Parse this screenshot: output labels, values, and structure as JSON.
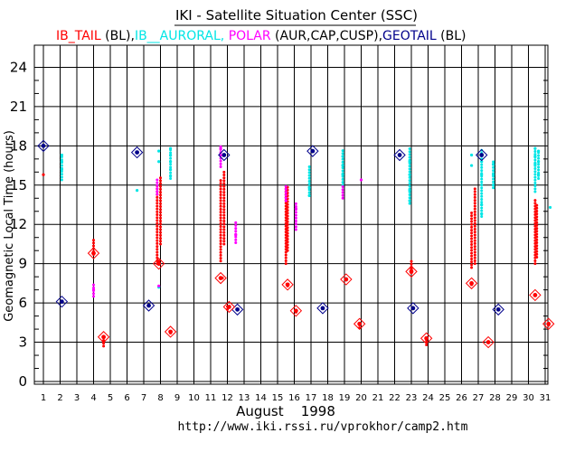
{
  "chart_data": {
    "type": "scatter",
    "title": "IKI - Satellite Situation Center (SSC)",
    "legend": [
      {
        "text": "IB_TAIL",
        "color": "#ff0000"
      },
      {
        "text": " (BL),",
        "color": "#000000"
      },
      {
        "text": "IB__AURORAL,",
        "color": "#00e5e5"
      },
      {
        "text": " POLAR",
        "color": "#ff00ff"
      },
      {
        "text": " (AUR,CAP,CUSP),",
        "color": "#000000"
      },
      {
        "text": "GEOTAIL",
        "color": "#00008b"
      },
      {
        "text": " (BL)",
        "color": "#000000"
      }
    ],
    "xlabel": "August    1998",
    "ylabel": "Geomagnetic Local Time (hours)",
    "url": "http://www.iki.rssi.ru/vprokhor/camp2.htm",
    "xlim": [
      0.5,
      32
    ],
    "ylim": [
      0,
      25
    ],
    "x_ticks": [
      1,
      2,
      3,
      4,
      5,
      6,
      7,
      8,
      9,
      10,
      11,
      12,
      13,
      14,
      15,
      16,
      17,
      18,
      19,
      20,
      21,
      22,
      23,
      24,
      25,
      26,
      27,
      28,
      29,
      30,
      31
    ],
    "y_ticks": [
      0,
      3,
      6,
      9,
      12,
      15,
      18,
      21,
      24
    ],
    "grid": true,
    "series": [
      {
        "key": "ib_tail",
        "color": "#ff0000",
        "points": [
          [
            1,
            15.8
          ],
          [
            4,
            9.8
          ],
          [
            4.6,
            3.0
          ],
          [
            7.9,
            9.2
          ],
          [
            8.6,
            3.7
          ],
          [
            11.7,
            7.9
          ],
          [
            12.1,
            5.7
          ],
          [
            15.6,
            7.3
          ],
          [
            16.1,
            5.3
          ],
          [
            19.1,
            7.8
          ],
          [
            19.9,
            4.4
          ],
          [
            23,
            8.6
          ],
          [
            23.9,
            3.2
          ],
          [
            26.6,
            7.4
          ],
          [
            27.6,
            3.0
          ],
          [
            30.4,
            6.6
          ],
          [
            31.2,
            4.3
          ]
        ],
        "segments": [
          [
            4,
            9.7,
            11.0
          ],
          [
            4.6,
            2.7,
            3.2
          ],
          [
            7.8,
            9.0,
            15.0
          ],
          [
            8.0,
            10.5,
            15.6
          ],
          [
            11.6,
            9.2,
            15.5
          ],
          [
            11.8,
            10.5,
            16.0
          ],
          [
            12.0,
            5.5,
            5.8
          ],
          [
            15.5,
            9.0,
            14.8
          ],
          [
            15.6,
            10.0,
            15.0
          ],
          [
            19.9,
            4.1,
            4.5
          ],
          [
            23.0,
            8.3,
            9.3
          ],
          [
            23.9,
            2.8,
            3.2
          ],
          [
            26.6,
            8.7,
            13.0
          ],
          [
            26.8,
            9.0,
            14.8
          ],
          [
            30.4,
            9.0,
            14.0
          ],
          [
            30.5,
            9.5,
            13.5
          ]
        ]
      },
      {
        "key": "ib_auroral",
        "color": "#00e5e5",
        "points": [
          [
            2.1,
            16.2
          ],
          [
            2.1,
            16.8
          ],
          [
            2.1,
            17.3
          ],
          [
            6.6,
            14.6
          ],
          [
            7.9,
            7.2
          ],
          [
            8.6,
            17.8
          ],
          [
            8.6,
            17.3
          ],
          [
            8.6,
            16.8
          ],
          [
            8.6,
            16.2
          ],
          [
            8.6,
            15.7
          ],
          [
            7.9,
            16.8
          ],
          [
            7.9,
            17.6
          ],
          [
            16.9,
            14.8
          ],
          [
            16.9,
            14.2
          ],
          [
            18.9,
            15.8
          ],
          [
            18.9,
            16.5
          ],
          [
            18.9,
            17.2
          ],
          [
            22.9,
            16.8
          ],
          [
            22.9,
            15.8
          ],
          [
            22.9,
            14.6
          ],
          [
            22.9,
            13.8
          ],
          [
            26.6,
            17.3
          ],
          [
            26.6,
            16.5
          ],
          [
            27.2,
            16.8
          ],
          [
            27.2,
            15.8
          ],
          [
            27.2,
            13.5
          ],
          [
            27.2,
            12.8
          ],
          [
            27.9,
            16.6
          ],
          [
            27.9,
            15.8
          ],
          [
            27.9,
            15.0
          ],
          [
            30.4,
            17.8
          ],
          [
            30.4,
            17.2
          ],
          [
            30.4,
            16.6
          ],
          [
            30.6,
            17.6
          ],
          [
            30.6,
            16.8
          ],
          [
            30.6,
            15.8
          ],
          [
            31.3,
            13.3
          ]
        ],
        "segments": [
          [
            2.1,
            15.4,
            17.3
          ],
          [
            8.6,
            15.5,
            17.9
          ],
          [
            16.9,
            14.2,
            16.5
          ],
          [
            18.9,
            15.0,
            17.8
          ],
          [
            22.9,
            13.6,
            17.8
          ],
          [
            27.2,
            12.6,
            17.8
          ],
          [
            27.9,
            14.8,
            16.8
          ],
          [
            30.4,
            14.5,
            17.9
          ],
          [
            30.6,
            15.5,
            17.6
          ]
        ]
      },
      {
        "key": "polar",
        "color": "#ff00ff",
        "points": [
          [
            4,
            7.0
          ],
          [
            7.9,
            7.3
          ],
          [
            11.6,
            17.8
          ],
          [
            12.5,
            11.2
          ],
          [
            16.1,
            13.2
          ],
          [
            20,
            15.4
          ]
        ],
        "segments": [
          [
            4,
            6.5,
            7.4
          ],
          [
            7.8,
            14.3,
            15.6
          ],
          [
            11.6,
            16.4,
            18.1
          ],
          [
            12.5,
            10.6,
            12.3
          ],
          [
            15.5,
            13.8,
            14.9
          ],
          [
            16.1,
            11.6,
            13.7
          ],
          [
            18.9,
            14.0,
            15.0
          ]
        ]
      },
      {
        "key": "geotail",
        "color": "#00008b",
        "markers": [
          [
            1,
            18.0
          ],
          [
            2.1,
            6.1
          ],
          [
            6.6,
            17.5
          ],
          [
            7.3,
            5.8
          ],
          [
            11.8,
            17.3
          ],
          [
            12.6,
            5.5
          ],
          [
            17.1,
            17.6
          ],
          [
            17.7,
            5.6
          ],
          [
            22.3,
            17.3
          ],
          [
            23.1,
            5.6
          ],
          [
            27.2,
            17.3
          ],
          [
            28.2,
            5.5
          ]
        ]
      },
      {
        "key": "ib_tail_markers",
        "color": "#ff0000",
        "markers": [
          [
            4,
            9.8
          ],
          [
            4.6,
            3.4
          ],
          [
            7.9,
            9.0
          ],
          [
            8.6,
            3.8
          ],
          [
            11.6,
            7.9
          ],
          [
            12.1,
            5.7
          ],
          [
            15.6,
            7.4
          ],
          [
            16.1,
            5.4
          ],
          [
            19.1,
            7.8
          ],
          [
            19.9,
            4.4
          ],
          [
            23,
            8.4
          ],
          [
            23.9,
            3.3
          ],
          [
            26.6,
            7.5
          ],
          [
            27.6,
            3.0
          ],
          [
            30.4,
            6.6
          ],
          [
            31.2,
            4.4
          ]
        ]
      }
    ]
  }
}
